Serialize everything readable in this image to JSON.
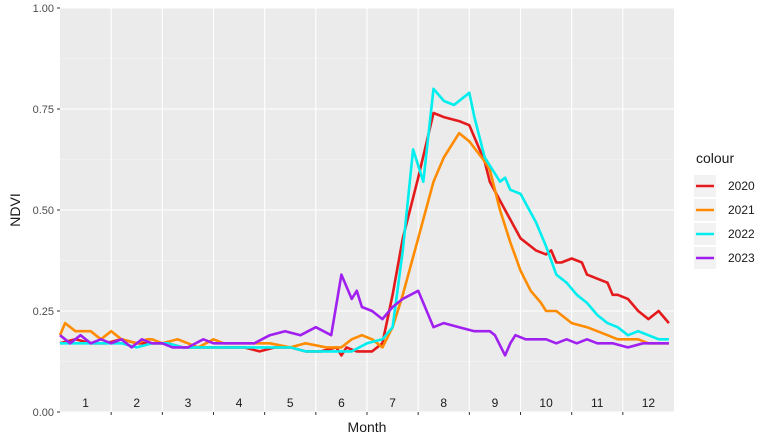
{
  "chart_data": {
    "type": "line",
    "xlabel": "Month",
    "ylabel": "NDVI",
    "ylim": [
      0,
      1
    ],
    "xlim": [
      0.5,
      12.5
    ],
    "y_ticks": [
      "0.00",
      "0.25",
      "0.50",
      "0.75",
      "1.00"
    ],
    "y_tick_values": [
      0,
      0.25,
      0.5,
      0.75,
      1.0
    ],
    "x_ticks": [
      "1",
      "2",
      "3",
      "4",
      "5",
      "6",
      "7",
      "8",
      "9",
      "10",
      "11",
      "12"
    ],
    "grid": true,
    "legend_title": "colour",
    "legend_position": "right",
    "series": [
      {
        "name": "2020",
        "color": "#e41a1c",
        "x": [
          0.5,
          0.8,
          1.1,
          1.4,
          1.7,
          2.0,
          2.3,
          2.6,
          2.9,
          3.2,
          3.5,
          3.8,
          4.1,
          4.4,
          4.7,
          5.0,
          5.3,
          5.6,
          5.9,
          6.0,
          6.1,
          6.3,
          6.6,
          6.8,
          7.0,
          7.2,
          7.5,
          7.8,
          8.0,
          8.3,
          8.5,
          8.8,
          8.9,
          9.2,
          9.5,
          9.8,
          10.0,
          10.1,
          10.2,
          10.3,
          10.5,
          10.7,
          10.8,
          11.0,
          11.2,
          11.3,
          11.4,
          11.6,
          11.8,
          11.9,
          12.0,
          12.2,
          12.4
        ],
        "y": [
          0.17,
          0.18,
          0.17,
          0.17,
          0.18,
          0.17,
          0.17,
          0.17,
          0.16,
          0.16,
          0.16,
          0.16,
          0.16,
          0.15,
          0.16,
          0.16,
          0.15,
          0.15,
          0.16,
          0.14,
          0.16,
          0.15,
          0.15,
          0.17,
          0.29,
          0.43,
          0.58,
          0.74,
          0.73,
          0.72,
          0.71,
          0.62,
          0.57,
          0.5,
          0.43,
          0.4,
          0.39,
          0.4,
          0.37,
          0.37,
          0.38,
          0.37,
          0.34,
          0.33,
          0.32,
          0.29,
          0.29,
          0.28,
          0.25,
          0.24,
          0.23,
          0.25,
          0.22
        ]
      },
      {
        "name": "2021",
        "color": "#ff8c00",
        "x": [
          0.5,
          0.6,
          0.8,
          1.0,
          1.1,
          1.3,
          1.5,
          1.7,
          2.0,
          2.2,
          2.3,
          2.5,
          2.8,
          3.0,
          3.2,
          3.5,
          3.7,
          4.0,
          4.3,
          4.6,
          5.0,
          5.3,
          5.7,
          6.0,
          6.2,
          6.4,
          6.6,
          6.8,
          7.0,
          7.2,
          7.5,
          7.8,
          8.0,
          8.3,
          8.5,
          8.8,
          8.9,
          9.1,
          9.3,
          9.5,
          9.7,
          9.9,
          10.0,
          10.2,
          10.3,
          10.5,
          10.8,
          11.0,
          11.2,
          11.4,
          11.6,
          11.8,
          12.0,
          12.3,
          12.4
        ],
        "y": [
          0.19,
          0.22,
          0.2,
          0.2,
          0.2,
          0.18,
          0.2,
          0.18,
          0.17,
          0.18,
          0.18,
          0.17,
          0.18,
          0.17,
          0.16,
          0.18,
          0.17,
          0.17,
          0.17,
          0.17,
          0.16,
          0.17,
          0.16,
          0.16,
          0.18,
          0.19,
          0.18,
          0.16,
          0.21,
          0.29,
          0.43,
          0.57,
          0.63,
          0.69,
          0.67,
          0.62,
          0.6,
          0.5,
          0.42,
          0.35,
          0.3,
          0.27,
          0.25,
          0.25,
          0.24,
          0.22,
          0.21,
          0.2,
          0.19,
          0.18,
          0.18,
          0.18,
          0.17,
          0.17,
          0.17
        ]
      },
      {
        "name": "2022",
        "color": "#00eeee",
        "x": [
          0.5,
          0.8,
          1.1,
          1.4,
          1.7,
          2.0,
          2.3,
          2.6,
          2.9,
          3.2,
          3.5,
          3.8,
          4.1,
          4.4,
          4.7,
          5.0,
          5.3,
          5.6,
          5.9,
          6.2,
          6.5,
          6.8,
          7.0,
          7.2,
          7.4,
          7.6,
          7.8,
          8.0,
          8.2,
          8.5,
          8.6,
          8.8,
          9.0,
          9.1,
          9.2,
          9.3,
          9.5,
          9.8,
          10.0,
          10.2,
          10.4,
          10.6,
          10.8,
          11.0,
          11.2,
          11.4,
          11.6,
          11.8,
          12.0,
          12.2,
          12.4
        ],
        "y": [
          0.17,
          0.17,
          0.17,
          0.17,
          0.17,
          0.16,
          0.17,
          0.17,
          0.16,
          0.16,
          0.16,
          0.16,
          0.16,
          0.16,
          0.16,
          0.16,
          0.15,
          0.15,
          0.15,
          0.15,
          0.17,
          0.18,
          0.21,
          0.4,
          0.65,
          0.57,
          0.8,
          0.77,
          0.76,
          0.79,
          0.73,
          0.63,
          0.59,
          0.57,
          0.58,
          0.55,
          0.54,
          0.47,
          0.41,
          0.34,
          0.32,
          0.29,
          0.27,
          0.24,
          0.22,
          0.21,
          0.19,
          0.2,
          0.19,
          0.18,
          0.18
        ]
      },
      {
        "name": "2023",
        "color": "#a020f0",
        "x": [
          0.5,
          0.7,
          0.9,
          1.1,
          1.3,
          1.5,
          1.7,
          1.9,
          2.1,
          2.3,
          2.5,
          2.7,
          3.0,
          3.3,
          3.5,
          3.8,
          4.0,
          4.3,
          4.6,
          4.9,
          5.2,
          5.5,
          5.8,
          6.0,
          6.2,
          6.3,
          6.4,
          6.6,
          6.8,
          7.0,
          7.2,
          7.5,
          7.8,
          8.0,
          8.3,
          8.6,
          8.8,
          8.9,
          9.0,
          9.2,
          9.3,
          9.4,
          9.6,
          9.8,
          10.0,
          10.2,
          10.4,
          10.6,
          10.8,
          11.0,
          11.3,
          11.6,
          11.9,
          12.2,
          12.4
        ],
        "y": [
          0.19,
          0.17,
          0.19,
          0.17,
          0.18,
          0.17,
          0.18,
          0.16,
          0.18,
          0.17,
          0.17,
          0.16,
          0.16,
          0.18,
          0.17,
          0.17,
          0.17,
          0.17,
          0.19,
          0.2,
          0.19,
          0.21,
          0.19,
          0.34,
          0.28,
          0.3,
          0.26,
          0.25,
          0.23,
          0.26,
          0.28,
          0.3,
          0.21,
          0.22,
          0.21,
          0.2,
          0.2,
          0.2,
          0.19,
          0.14,
          0.17,
          0.19,
          0.18,
          0.18,
          0.18,
          0.17,
          0.18,
          0.17,
          0.18,
          0.17,
          0.17,
          0.16,
          0.17,
          0.17,
          0.17
        ]
      }
    ]
  }
}
